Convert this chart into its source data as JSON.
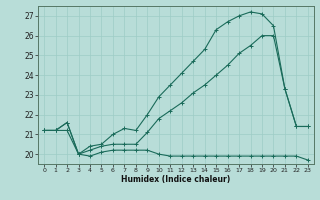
{
  "title": "",
  "xlabel": "Humidex (Indice chaleur)",
  "ylabel": "",
  "background_color": "#b8ddd8",
  "grid_color": "#9eccc6",
  "line_color": "#1a6b5a",
  "xlim": [
    -0.5,
    23.5
  ],
  "ylim": [
    19.5,
    27.5
  ],
  "xticks": [
    0,
    1,
    2,
    3,
    4,
    5,
    6,
    7,
    8,
    9,
    10,
    11,
    12,
    13,
    14,
    15,
    16,
    17,
    18,
    19,
    20,
    21,
    22,
    23
  ],
  "yticks": [
    20,
    21,
    22,
    23,
    24,
    25,
    26,
    27
  ],
  "series": [
    {
      "x": [
        0,
        1,
        2,
        3,
        4,
        5,
        6,
        7,
        8,
        9,
        10,
        11,
        12,
        13,
        14,
        15,
        16,
        17,
        18,
        19,
        20,
        21,
        22,
        23
      ],
      "y": [
        21.2,
        21.2,
        21.2,
        20.0,
        19.9,
        20.1,
        20.2,
        20.2,
        20.2,
        20.2,
        20.0,
        19.9,
        19.9,
        19.9,
        19.9,
        19.9,
        19.9,
        19.9,
        19.9,
        19.9,
        19.9,
        19.9,
        19.9,
        19.7
      ]
    },
    {
      "x": [
        0,
        1,
        2,
        3,
        4,
        5,
        6,
        7,
        8,
        9,
        10,
        11,
        12,
        13,
        14,
        15,
        16,
        17,
        18,
        19,
        20,
        21,
        22,
        23
      ],
      "y": [
        21.2,
        21.2,
        21.6,
        20.0,
        20.2,
        20.4,
        20.5,
        20.5,
        20.5,
        21.1,
        21.8,
        22.2,
        22.6,
        23.1,
        23.5,
        24.0,
        24.5,
        25.1,
        25.5,
        26.0,
        26.0,
        23.3,
        21.4,
        21.4
      ]
    },
    {
      "x": [
        0,
        1,
        2,
        3,
        4,
        5,
        6,
        7,
        8,
        9,
        10,
        11,
        12,
        13,
        14,
        15,
        16,
        17,
        18,
        19,
        20,
        21,
        22,
        23
      ],
      "y": [
        21.2,
        21.2,
        21.6,
        20.0,
        20.4,
        20.5,
        21.0,
        21.3,
        21.2,
        22.0,
        22.9,
        23.5,
        24.1,
        24.7,
        25.3,
        26.3,
        26.7,
        27.0,
        27.2,
        27.1,
        26.5,
        23.3,
        21.4,
        21.4
      ]
    }
  ]
}
